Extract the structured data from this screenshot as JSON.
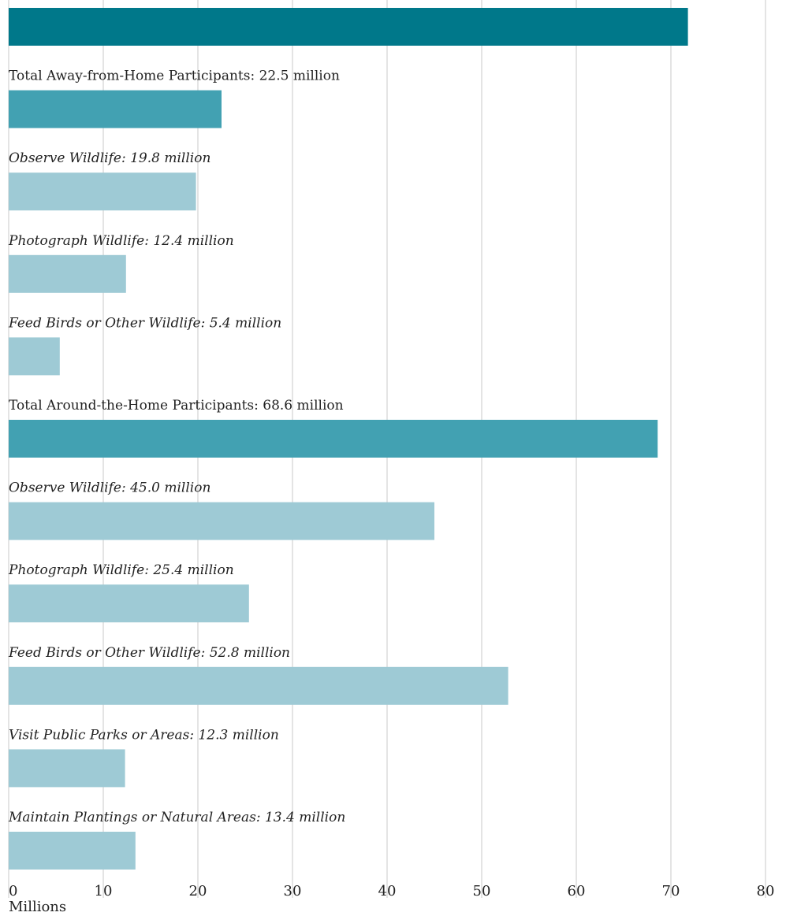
{
  "chart_data": {
    "type": "bar",
    "orientation": "horizontal",
    "xlabel": "Millions",
    "xlim": [
      0,
      80
    ],
    "x_ticks": [
      0,
      10,
      20,
      30,
      40,
      50,
      60,
      70,
      80
    ],
    "grid": true,
    "colors": {
      "total_top": "#00788a",
      "total": "#42a1b2",
      "activity": "#9ecad5"
    },
    "bars": [
      {
        "label": "",
        "value": 71.8,
        "style": "total_top",
        "italic": false
      },
      {
        "label": "Total Away-from-Home Participants: 22.5 million",
        "value": 22.5,
        "style": "total",
        "italic": false
      },
      {
        "label": "Observe Wildlife: 19.8 million",
        "value": 19.8,
        "style": "activity",
        "italic": true
      },
      {
        "label": "Photograph Wildlife: 12.4 million",
        "value": 12.4,
        "style": "activity",
        "italic": true
      },
      {
        "label": "Feed Birds or Other Wildlife: 5.4 million",
        "value": 5.4,
        "style": "activity",
        "italic": true
      },
      {
        "label": "Total Around-the-Home Participants: 68.6 million",
        "value": 68.6,
        "style": "total",
        "italic": false
      },
      {
        "label": "Observe Wildlife: 45.0 million",
        "value": 45.0,
        "style": "activity",
        "italic": true
      },
      {
        "label": "Photograph Wildlife: 25.4 million",
        "value": 25.4,
        "style": "activity",
        "italic": true
      },
      {
        "label": "Feed Birds or Other Wildlife: 52.8 million",
        "value": 52.8,
        "style": "activity",
        "italic": true
      },
      {
        "label": "Visit Public Parks or Areas: 12.3 million",
        "value": 12.3,
        "style": "activity",
        "italic": true
      },
      {
        "label": "Maintain Plantings or Natural Areas: 13.4 million",
        "value": 13.4,
        "style": "activity",
        "italic": true
      }
    ]
  }
}
